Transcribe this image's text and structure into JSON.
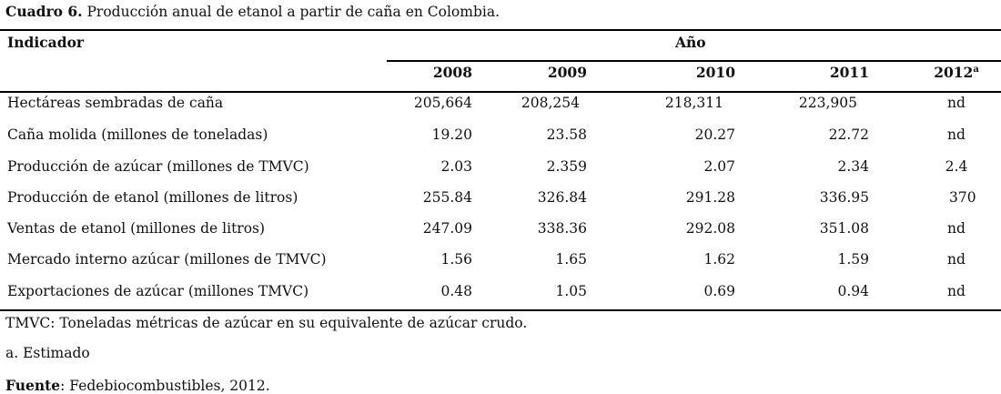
{
  "caption": {
    "label": "Cuadro 6.",
    "text": " Producción anual de etanol a partir de caña en Colombia."
  },
  "header": {
    "indicator": "Indicador",
    "year_group": "Año",
    "years": [
      "2008",
      "2009",
      "2010",
      "2011",
      "2012"
    ],
    "year_2012_superscript": "a"
  },
  "rows": [
    {
      "label": "Hectáreas sembradas de caña",
      "values": [
        "205,664",
        "208,254",
        "218,311",
        "223,905",
        "nd"
      ]
    },
    {
      "label": "Caña molida (millones de toneladas)",
      "values": [
        "19.20",
        "23.58",
        "20.27",
        "22.72",
        "nd"
      ]
    },
    {
      "label": "Producción de azúcar (millones de TMVC)",
      "values": [
        "2.03",
        "2.359",
        "2.07",
        "2.34",
        "2.4"
      ]
    },
    {
      "label": "Producción de etanol (millones de litros)",
      "values": [
        "255.84",
        "326.84",
        "291.28",
        "336.95",
        "370"
      ]
    },
    {
      "label": "Ventas de etanol (millones de litros)",
      "values": [
        "247.09",
        "338.36",
        "292.08",
        "351.08",
        "nd"
      ]
    },
    {
      "label": "Mercado interno azúcar (millones de TMVC)",
      "values": [
        "1.56",
        "1.65",
        "1.62",
        "1.59",
        "nd"
      ]
    },
    {
      "label": "Exportaciones de azúcar (millones TMVC)",
      "values": [
        "0.48",
        "1.05",
        "0.69",
        "0.94",
        "nd"
      ]
    }
  ],
  "notes": {
    "tmvc": "TMVC: Toneladas métricas de azúcar en su equivalente de azúcar crudo.",
    "a": "a. Estimado",
    "source_label": "Fuente",
    "source_text": ": Fedebiocombustibles, 2012."
  }
}
